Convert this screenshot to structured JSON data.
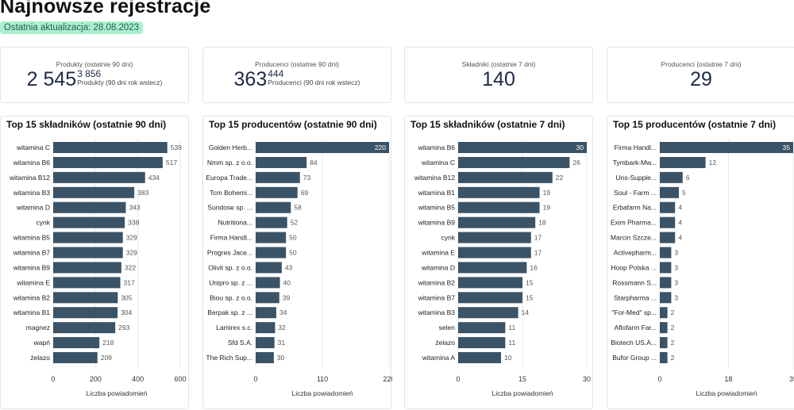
{
  "header": {
    "title": "Najnowsze rejestracje",
    "last_update": "Ostatnia aktualizacja: 28.08.2023"
  },
  "kpis": [
    {
      "label": "Produkty (ostatnie 90 dni)",
      "value": "2 545",
      "compare_value": "3 856",
      "compare_label": "Produkty (90 dni rok wstecz)"
    },
    {
      "label": "Producenci (ostatnie 90 dni)",
      "value": "363",
      "compare_value": "444",
      "compare_label": "Producenci (90 dni rok wstecz)"
    },
    {
      "label": "Składniki (ostatnie 7 dni)",
      "value": "140"
    },
    {
      "label": "Producenci (ostatnie 7 dni)",
      "value": "29"
    }
  ],
  "colors": {
    "bar": "#3b5366",
    "badge_bg": "#a8f0cf"
  },
  "chart_data": [
    {
      "type": "bar",
      "orientation": "horizontal",
      "title": "Top 15 składników (ostatnie 90 dni)",
      "xlabel": "Liczba powiadomień",
      "xlim": [
        0,
        600
      ],
      "xticks": [
        "0",
        "200",
        "400",
        "600"
      ],
      "categories": [
        "witamina C",
        "witamina B6",
        "witamina B12",
        "witamina B3",
        "witamina D",
        "cynk",
        "witamina B5",
        "witamina B7",
        "witamina B9",
        "witamina E",
        "witamina B2",
        "witamina B1",
        "magnez",
        "wapń",
        "żelazo"
      ],
      "values": [
        539,
        517,
        434,
        383,
        343,
        338,
        329,
        329,
        322,
        317,
        305,
        304,
        293,
        218,
        209
      ]
    },
    {
      "type": "bar",
      "orientation": "horizontal",
      "title": "Top 15 producentów (ostatnie 90 dni)",
      "xlabel": "Liczba powiadomień",
      "xlim": [
        0,
        220
      ],
      "xticks": [
        "0",
        "110",
        "220"
      ],
      "categories": [
        "Golden Herb...",
        "Nmm sp. z o.o.",
        "Europa Trade...",
        "Tcm Bohemi...",
        "Sundose sp. ...",
        "Nutritiona...",
        "Firma Handl...",
        "Progres Jace...",
        "Olivit sp. z o.o.",
        "Unipro sp. z ...",
        "Biou sp. z o.o.",
        "Berpak sp. z ...",
        "Lamirex s.c.",
        "Sfd  S.A.",
        "The Rich Sup..."
      ],
      "values": [
        220,
        84,
        73,
        69,
        58,
        52,
        50,
        50,
        43,
        40,
        39,
        34,
        32,
        31,
        30
      ]
    },
    {
      "type": "bar",
      "orientation": "horizontal",
      "title": "Top 15 składników (ostatnie 7 dni)",
      "xlabel": "Liczba powiadomień",
      "xlim": [
        0,
        30
      ],
      "xticks": [
        "0",
        "15",
        "30"
      ],
      "categories": [
        "witamina B6",
        "witamina C",
        "witamina B12",
        "witamina B1",
        "witamina B5",
        "witamina B9",
        "cynk",
        "witamina E",
        "witamina D",
        "witamina B2",
        "witamina B7",
        "witamina B3",
        "selen",
        "żelazo",
        "witamina A"
      ],
      "values": [
        30,
        26,
        22,
        19,
        19,
        18,
        17,
        17,
        16,
        15,
        15,
        14,
        11,
        11,
        10
      ]
    },
    {
      "type": "bar",
      "orientation": "horizontal",
      "title": "Top 15 producentów (ostatnie 7 dni)",
      "xlabel": "Liczba powiadomień",
      "xlim": [
        0,
        35
      ],
      "xticks": [
        "0",
        "18",
        "35"
      ],
      "categories": [
        "Firma Handl...",
        "Tymbark-Mw...",
        "Uns-Supple...",
        "Soul - Farm ...",
        "Erbafarm Na...",
        "Exim Pharma...",
        "Marcin Szcze...",
        "Activepharm...",
        "Hoop Polska ...",
        "Rossmann S...",
        "Starpharma ...",
        "\"For-Med\" sp...",
        "Aflofarm Far...",
        "Biotech US.A...",
        "Bufor Group ..."
      ],
      "values": [
        35,
        12,
        6,
        5,
        4,
        4,
        4,
        3,
        3,
        3,
        3,
        2,
        2,
        2,
        2
      ]
    }
  ]
}
